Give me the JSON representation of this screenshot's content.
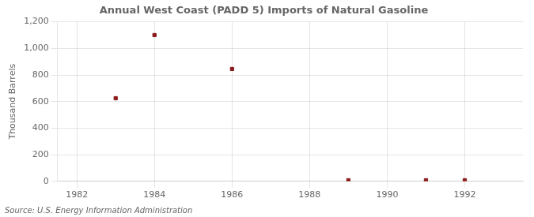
{
  "chart_data": {
    "type": "scatter",
    "title": "Annual West Coast (PADD 5) Imports of Natural Gasoline",
    "ylabel": "Thousand Barrels",
    "source": "Source: U.S. Energy Information Administration",
    "x": [
      1983,
      1984,
      1986,
      1989,
      1991,
      1992
    ],
    "values": [
      625,
      1100,
      845,
      8,
      8,
      8
    ],
    "color": "#8b1a1a",
    "marker": "square",
    "xlim": [
      1981.5,
      1993.5
    ],
    "xticks": [
      1982,
      1984,
      1986,
      1988,
      1990,
      1992
    ],
    "ylim": [
      0,
      1200
    ],
    "yticks": [
      0,
      200,
      400,
      600,
      800,
      {
        "value": 1000,
        "label": "1,000"
      },
      {
        "value": 1200,
        "label": "1,200"
      }
    ],
    "grid": true
  }
}
